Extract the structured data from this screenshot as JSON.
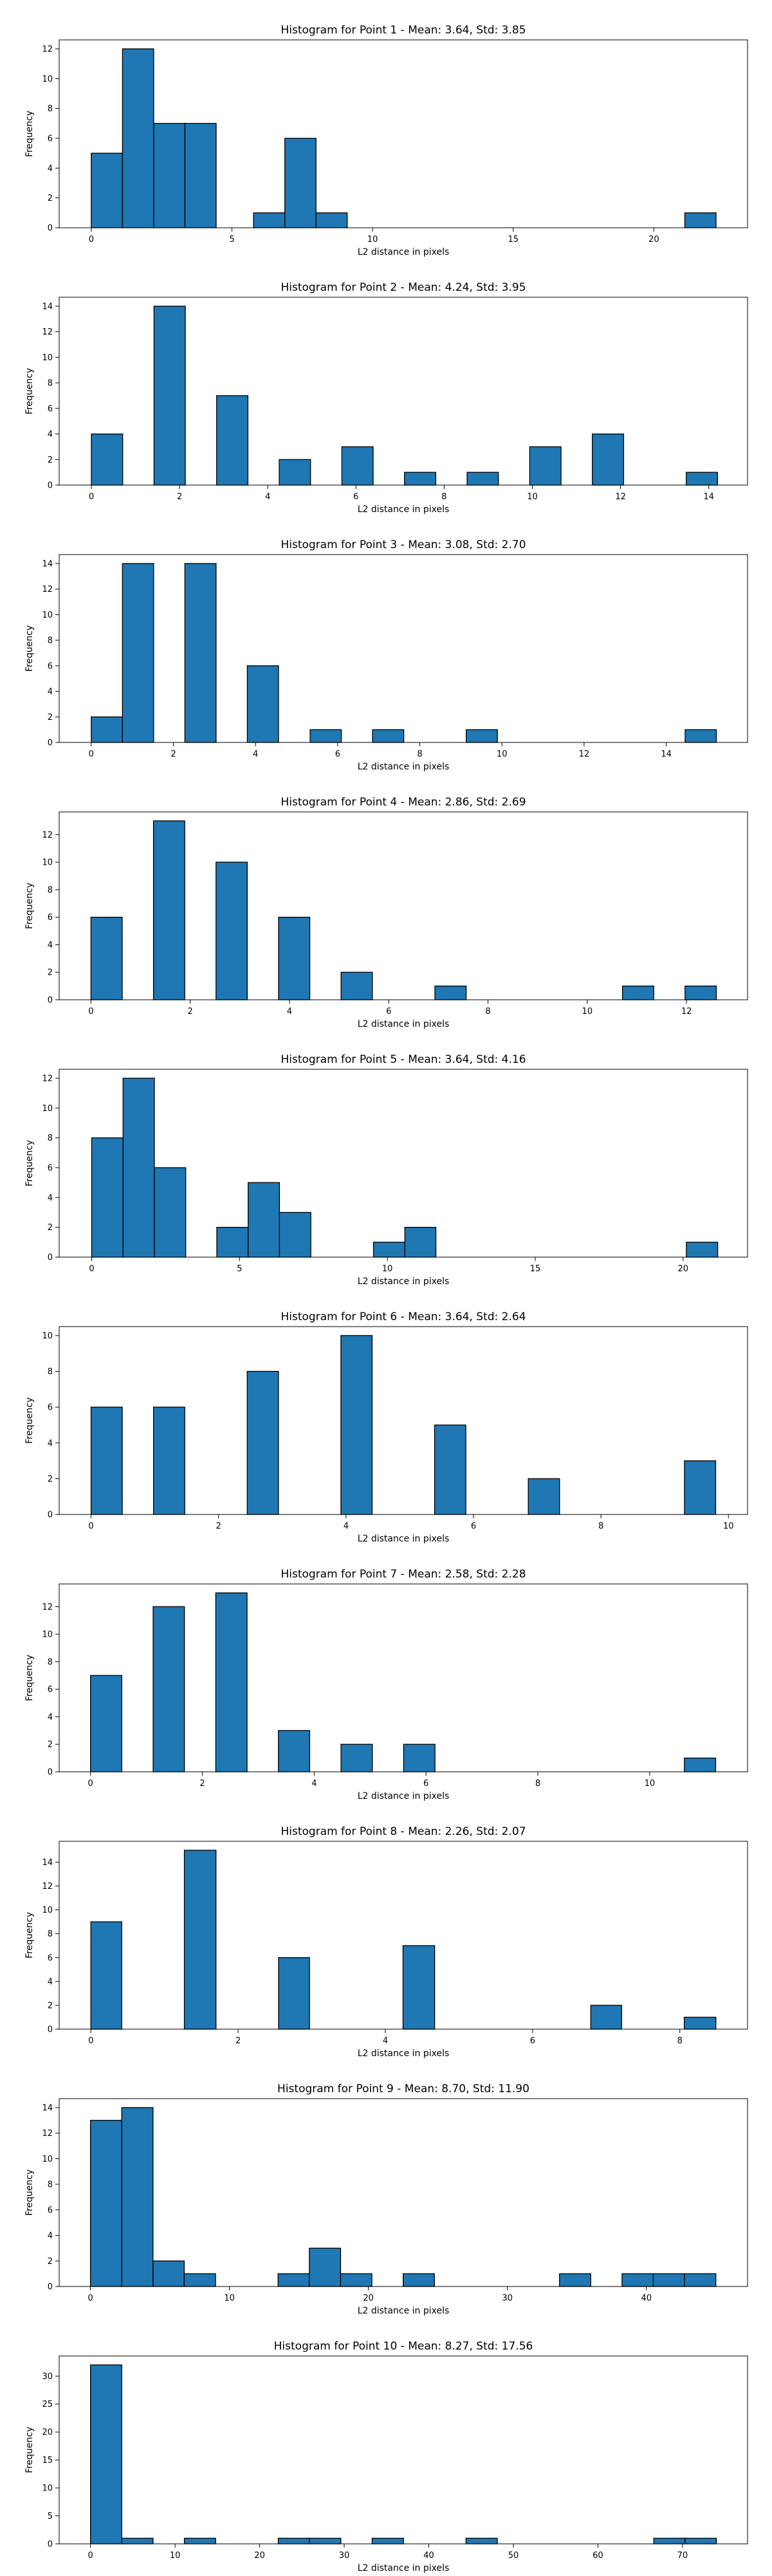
{
  "chart_data": [
    {
      "type": "bar",
      "title": "Histogram for Point 1 - Mean: 3.64, Std: 3.85",
      "xlabel": "L2 distance in pixels",
      "ylabel": "Frequency",
      "xlim": [
        -1.14,
        23.33
      ],
      "ylim": [
        0,
        12.6
      ],
      "xticks": [
        0,
        5,
        10,
        15,
        20
      ],
      "xtick_labels": [
        "0",
        "5",
        "10",
        "15",
        "20"
      ],
      "yticks": [
        0,
        2,
        4,
        6,
        8,
        10,
        12
      ],
      "ytick_labels": [
        "0",
        "2",
        "4",
        "6",
        "8",
        "10",
        "12"
      ],
      "bins": [
        {
          "x0": 0.0,
          "x1": 1.11,
          "count": 5
        },
        {
          "x0": 1.11,
          "x2": 0,
          "x1": 2.22,
          "count": 12
        },
        {
          "x0": 2.22,
          "x1": 3.33,
          "count": 7
        },
        {
          "x0": 3.33,
          "x1": 4.44,
          "count": 7
        },
        {
          "x0": 5.77,
          "x1": 6.88,
          "count": 1
        },
        {
          "x0": 6.88,
          "x1": 7.99,
          "count": 6
        },
        {
          "x0": 7.99,
          "x1": 9.1,
          "count": 1
        },
        {
          "x0": 21.1,
          "x1": 22.21,
          "count": 1
        }
      ]
    },
    {
      "type": "bar",
      "title": "Histogram for Point 2 - Mean: 4.24, Std: 3.95",
      "xlabel": "L2 distance in pixels",
      "ylabel": "Frequency",
      "xlim": [
        -0.73,
        14.88
      ],
      "ylim": [
        0,
        14.7
      ],
      "xticks": [
        0,
        2,
        4,
        6,
        8,
        10,
        12,
        14
      ],
      "xtick_labels": [
        "0",
        "2",
        "4",
        "6",
        "8",
        "10",
        "12",
        "14"
      ],
      "yticks": [
        0,
        2,
        4,
        6,
        8,
        10,
        12,
        14
      ],
      "ytick_labels": [
        "0",
        "2",
        "4",
        "6",
        "8",
        "10",
        "12",
        "14"
      ],
      "bins": [
        {
          "x0": 0.0,
          "x1": 0.71,
          "count": 4
        },
        {
          "x0": 1.42,
          "x1": 2.13,
          "count": 14
        },
        {
          "x0": 2.84,
          "x1": 3.55,
          "count": 7
        },
        {
          "x0": 4.26,
          "x1": 4.97,
          "count": 2
        },
        {
          "x0": 5.68,
          "x1": 6.39,
          "count": 3
        },
        {
          "x0": 7.1,
          "x1": 7.81,
          "count": 1
        },
        {
          "x0": 8.52,
          "x1": 9.23,
          "count": 1
        },
        {
          "x0": 9.94,
          "x1": 10.65,
          "count": 3
        },
        {
          "x0": 11.36,
          "x1": 12.07,
          "count": 4
        },
        {
          "x0": 13.49,
          "x1": 14.2,
          "count": 1
        }
      ]
    },
    {
      "type": "bar",
      "title": "Histogram for Point 3 - Mean: 3.08, Std: 2.70",
      "xlabel": "L2 distance in pixels",
      "ylabel": "Frequency",
      "xlim": [
        -0.78,
        15.98
      ],
      "ylim": [
        0,
        14.7
      ],
      "xticks": [
        0,
        2,
        4,
        6,
        8,
        10,
        12,
        14
      ],
      "xtick_labels": [
        "0",
        "2",
        "4",
        "6",
        "8",
        "10",
        "12",
        "14"
      ],
      "yticks": [
        0,
        2,
        4,
        6,
        8,
        10,
        12,
        14
      ],
      "ytick_labels": [
        "0",
        "2",
        "4",
        "6",
        "8",
        "10",
        "12",
        "14"
      ],
      "bins": [
        {
          "x0": 0.0,
          "x1": 0.76,
          "count": 2
        },
        {
          "x0": 0.76,
          "x1": 1.52,
          "count": 14
        },
        {
          "x0": 2.28,
          "x1": 3.04,
          "count": 14
        },
        {
          "x0": 3.8,
          "x1": 4.56,
          "count": 6
        },
        {
          "x0": 5.33,
          "x1": 6.09,
          "count": 1
        },
        {
          "x0": 6.85,
          "x1": 7.61,
          "count": 1
        },
        {
          "x0": 9.13,
          "x1": 9.89,
          "count": 1
        },
        {
          "x0": 14.46,
          "x1": 15.22,
          "count": 1
        }
      ]
    },
    {
      "type": "bar",
      "title": "Histogram for Point 4 - Mean: 2.86, Std: 2.69",
      "xlabel": "L2 distance in pixels",
      "ylabel": "Frequency",
      "xlim": [
        -0.64,
        13.23
      ],
      "ylim": [
        0,
        13.65
      ],
      "xticks": [
        0,
        2,
        4,
        6,
        8,
        10,
        12
      ],
      "xtick_labels": [
        "0",
        "2",
        "4",
        "6",
        "8",
        "10",
        "12"
      ],
      "yticks": [
        0,
        2,
        4,
        6,
        8,
        10,
        12
      ],
      "ytick_labels": [
        "0",
        "2",
        "4",
        "6",
        "8",
        "10",
        "12"
      ],
      "bins": [
        {
          "x0": 0.0,
          "x1": 0.63,
          "count": 6
        },
        {
          "x0": 1.26,
          "x1": 1.89,
          "count": 13
        },
        {
          "x0": 2.52,
          "x1": 3.15,
          "count": 10
        },
        {
          "x0": 3.78,
          "x1": 4.41,
          "count": 6
        },
        {
          "x0": 5.04,
          "x1": 5.67,
          "count": 2
        },
        {
          "x0": 6.93,
          "x1": 7.56,
          "count": 1
        },
        {
          "x0": 10.71,
          "x1": 11.34,
          "count": 1
        },
        {
          "x0": 11.97,
          "x1": 12.6,
          "count": 1
        }
      ]
    },
    {
      "type": "bar",
      "title": "Histogram for Point 5 - Mean: 3.64, Std: 4.16",
      "xlabel": "L2 distance in pixels",
      "ylabel": "Frequency",
      "xlim": [
        -1.1,
        22.18
      ],
      "ylim": [
        0,
        12.6
      ],
      "xticks": [
        0,
        5,
        10,
        15,
        20
      ],
      "xtick_labels": [
        "0",
        "5",
        "10",
        "15",
        "20"
      ],
      "yticks": [
        0,
        2,
        4,
        6,
        8,
        10,
        12
      ],
      "ytick_labels": [
        "0",
        "2",
        "4",
        "6",
        "8",
        "10",
        "12"
      ],
      "bins": [
        {
          "x0": 0.0,
          "x1": 1.06,
          "count": 8
        },
        {
          "x0": 1.06,
          "x1": 2.12,
          "count": 12
        },
        {
          "x0": 2.12,
          "x1": 3.18,
          "count": 6
        },
        {
          "x0": 4.23,
          "x1": 5.29,
          "count": 2
        },
        {
          "x0": 5.29,
          "x1": 6.35,
          "count": 5
        },
        {
          "x0": 6.35,
          "x1": 7.41,
          "count": 3
        },
        {
          "x0": 9.53,
          "x1": 10.59,
          "count": 1
        },
        {
          "x0": 10.59,
          "x1": 11.64,
          "count": 2
        },
        {
          "x0": 20.11,
          "x1": 21.17,
          "count": 1
        }
      ]
    },
    {
      "type": "bar",
      "title": "Histogram for Point 6 - Mean: 3.64, Std: 2.64",
      "xlabel": "L2 distance in pixels",
      "ylabel": "Frequency",
      "xlim": [
        -0.5,
        10.3
      ],
      "ylim": [
        0,
        10.5
      ],
      "xticks": [
        0,
        2,
        4,
        6,
        8,
        10
      ],
      "xtick_labels": [
        "0",
        "2",
        "4",
        "6",
        "8",
        "10"
      ],
      "yticks": [
        0,
        2,
        4,
        6,
        8,
        10
      ],
      "ytick_labels": [
        "0",
        "2",
        "4",
        "6",
        "8",
        "10"
      ],
      "bins": [
        {
          "x0": 0.0,
          "x1": 0.49,
          "count": 6
        },
        {
          "x0": 0.98,
          "x1": 1.47,
          "count": 6
        },
        {
          "x0": 2.45,
          "x1": 2.94,
          "count": 8
        },
        {
          "x0": 3.92,
          "x1": 4.41,
          "count": 10
        },
        {
          "x0": 5.39,
          "x1": 5.88,
          "count": 5
        },
        {
          "x0": 6.86,
          "x1": 7.35,
          "count": 2
        },
        {
          "x0": 9.31,
          "x1": 9.8,
          "count": 3
        }
      ]
    },
    {
      "type": "bar",
      "title": "Histogram for Point 7 - Mean: 2.58, Std: 2.28",
      "xlabel": "L2 distance in pixels",
      "ylabel": "Frequency",
      "xlim": [
        -0.56,
        11.75
      ],
      "ylim": [
        0,
        13.65
      ],
      "xticks": [
        0,
        2,
        4,
        6,
        8,
        10
      ],
      "xtick_labels": [
        "0",
        "2",
        "4",
        "6",
        "8",
        "10"
      ],
      "yticks": [
        0,
        2,
        4,
        6,
        8,
        10,
        12
      ],
      "ytick_labels": [
        "0",
        "2",
        "4",
        "6",
        "8",
        "10",
        "12"
      ],
      "bins": [
        {
          "x0": 0.0,
          "x1": 0.56,
          "count": 7
        },
        {
          "x0": 1.12,
          "x1": 1.68,
          "count": 12
        },
        {
          "x0": 2.24,
          "x1": 2.8,
          "count": 13
        },
        {
          "x0": 3.36,
          "x1": 3.92,
          "count": 3
        },
        {
          "x0": 4.48,
          "x1": 5.04,
          "count": 2
        },
        {
          "x0": 5.6,
          "x1": 6.16,
          "count": 2
        },
        {
          "x0": 10.62,
          "x1": 11.18,
          "count": 1
        }
      ]
    },
    {
      "type": "bar",
      "title": "Histogram for Point 8 - Mean: 2.26, Std: 2.07",
      "xlabel": "L2 distance in pixels",
      "ylabel": "Frequency",
      "xlim": [
        -0.43,
        8.92
      ],
      "ylim": [
        0,
        15.75
      ],
      "xticks": [
        0,
        2,
        4,
        6,
        8
      ],
      "xtick_labels": [
        "0",
        "2",
        "4",
        "6",
        "8"
      ],
      "yticks": [
        0,
        2,
        4,
        6,
        8,
        10,
        12,
        14
      ],
      "ytick_labels": [
        "0",
        "2",
        "4",
        "6",
        "8",
        "10",
        "12",
        "14"
      ],
      "bins": [
        {
          "x0": 0.0,
          "x1": 0.42,
          "count": 9
        },
        {
          "x0": 1.27,
          "x1": 1.7,
          "count": 15
        },
        {
          "x0": 2.55,
          "x1": 2.97,
          "count": 6
        },
        {
          "x0": 4.24,
          "x1": 4.67,
          "count": 7
        },
        {
          "x0": 6.79,
          "x1": 7.21,
          "count": 2
        },
        {
          "x0": 8.06,
          "x1": 8.49,
          "count": 1
        }
      ]
    },
    {
      "type": "bar",
      "title": "Histogram for Point 9 - Mean: 8.70, Std: 11.90",
      "xlabel": "L2 distance in pixels",
      "ylabel": "Frequency",
      "xlim": [
        -2.25,
        47.28
      ],
      "ylim": [
        0,
        14.7
      ],
      "xticks": [
        0,
        10,
        20,
        30,
        40
      ],
      "xtick_labels": [
        "0",
        "10",
        "20",
        "30",
        "40"
      ],
      "yticks": [
        0,
        2,
        4,
        6,
        8,
        10,
        12,
        14
      ],
      "ytick_labels": [
        "0",
        "2",
        "4",
        "6",
        "8",
        "10",
        "12",
        "14"
      ],
      "bins": [
        {
          "x0": 0.0,
          "x1": 2.25,
          "count": 13
        },
        {
          "x0": 2.25,
          "x1": 4.5,
          "count": 14
        },
        {
          "x0": 4.5,
          "x1": 6.75,
          "count": 2
        },
        {
          "x0": 6.75,
          "x1": 9.0,
          "count": 1
        },
        {
          "x0": 13.5,
          "x1": 15.75,
          "count": 1
        },
        {
          "x0": 15.75,
          "x1": 18.0,
          "count": 3
        },
        {
          "x0": 18.0,
          "x1": 20.25,
          "count": 1
        },
        {
          "x0": 22.5,
          "x1": 24.75,
          "count": 1
        },
        {
          "x0": 33.75,
          "x1": 36.0,
          "count": 1
        },
        {
          "x0": 38.25,
          "x1": 40.5,
          "count": 1
        },
        {
          "x0": 40.5,
          "x1": 42.75,
          "count": 1
        },
        {
          "x0": 42.75,
          "x1": 45.0,
          "count": 1
        }
      ]
    },
    {
      "type": "bar",
      "title": "Histogram for Point 10 - Mean: 8.27, Std: 17.56",
      "xlabel": "L2 distance in pixels",
      "ylabel": "Frequency",
      "xlim": [
        -3.7,
        77.69
      ],
      "ylim": [
        0,
        33.6
      ],
      "xticks": [
        0,
        10,
        20,
        30,
        40,
        50,
        60,
        70
      ],
      "xtick_labels": [
        "0",
        "10",
        "20",
        "30",
        "40",
        "50",
        "60",
        "70"
      ],
      "yticks": [
        0,
        5,
        10,
        15,
        20,
        25,
        30
      ],
      "ytick_labels": [
        "0",
        "5",
        "10",
        "15",
        "20",
        "25",
        "30"
      ],
      "bins": [
        {
          "x0": 0.0,
          "x1": 3.7,
          "count": 32
        },
        {
          "x0": 3.7,
          "x1": 7.4,
          "count": 1
        },
        {
          "x0": 11.1,
          "x1": 14.8,
          "count": 1
        },
        {
          "x0": 22.2,
          "x1": 25.9,
          "count": 1
        },
        {
          "x0": 25.9,
          "x1": 29.6,
          "count": 1
        },
        {
          "x0": 33.3,
          "x1": 37.0,
          "count": 1
        },
        {
          "x0": 44.4,
          "x1": 48.1,
          "count": 1
        },
        {
          "x0": 66.6,
          "x1": 70.3,
          "count": 1
        },
        {
          "x0": 70.3,
          "x1": 74.0,
          "count": 1
        }
      ]
    }
  ],
  "colors": {
    "bar_fill": "#1f77b4",
    "bar_edge": "#000000",
    "axis": "#000000",
    "background": "#ffffff"
  }
}
